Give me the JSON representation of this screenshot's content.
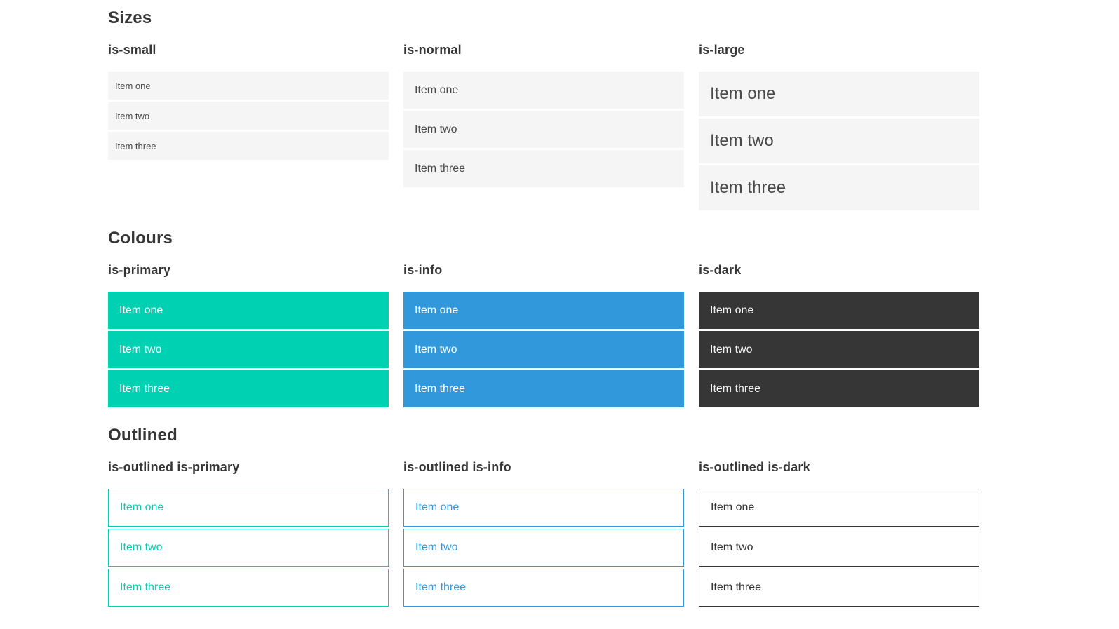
{
  "colors": {
    "primary": "#00d1b2",
    "info": "#3298dc",
    "dark": "#363636",
    "item_background": "#f5f5f5",
    "heading_text": "#363636",
    "item_text": "#4a4a4a",
    "inverted_text": "#ffffff",
    "page_background": "#ffffff"
  },
  "sections": [
    {
      "title": "Sizes",
      "groups": [
        {
          "label": "is-small",
          "items": [
            "Item one",
            "Item two",
            "Item three"
          ]
        },
        {
          "label": "is-normal",
          "items": [
            "Item one",
            "Item two",
            "Item three"
          ]
        },
        {
          "label": "is-large",
          "items": [
            "Item one",
            "Item two",
            "Item three"
          ]
        }
      ]
    },
    {
      "title": "Colours",
      "groups": [
        {
          "label": "is-primary",
          "items": [
            "Item one",
            "Item two",
            "Item three"
          ]
        },
        {
          "label": "is-info",
          "items": [
            "Item one",
            "Item two",
            "Item three"
          ]
        },
        {
          "label": "is-dark",
          "items": [
            "Item one",
            "Item two",
            "Item three"
          ]
        }
      ]
    },
    {
      "title": "Outlined",
      "groups": [
        {
          "label": "is-outlined is-primary",
          "items": [
            "Item one",
            "Item two",
            "Item three"
          ]
        },
        {
          "label": "is-outlined is-info",
          "items": [
            "Item one",
            "Item two",
            "Item three"
          ]
        },
        {
          "label": "is-outlined is-dark",
          "items": [
            "Item one",
            "Item two",
            "Item three"
          ]
        }
      ]
    }
  ]
}
